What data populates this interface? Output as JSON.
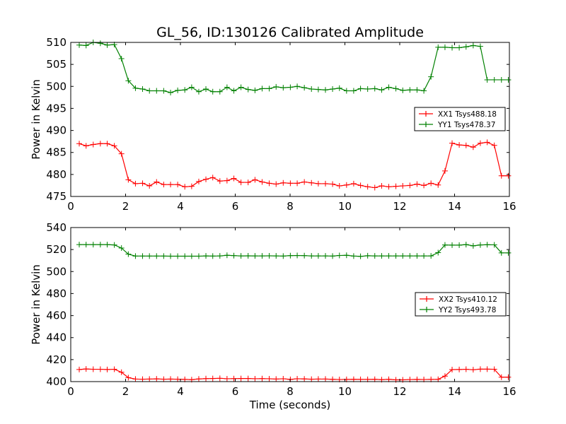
{
  "figure_title": "GL_56, ID:130126 Calibrated Amplitude",
  "colors": {
    "xx": "#ff0000",
    "yy": "#008000",
    "axes": "#000000",
    "background": "#ffffff"
  },
  "chart_data": [
    {
      "type": "line",
      "title": "GL_56, ID:130126 Calibrated Amplitude",
      "xlabel": "",
      "ylabel": "Power in Kelvin",
      "xlim": [
        0,
        16
      ],
      "ylim": [
        475,
        510
      ],
      "x_ticks": [
        0,
        2,
        4,
        6,
        8,
        10,
        12,
        14,
        16
      ],
      "y_ticks": [
        475,
        480,
        485,
        490,
        495,
        500,
        505,
        510
      ],
      "grid": false,
      "legend_position": "right",
      "marker": "plus",
      "x": [
        0.31,
        0.56,
        0.82,
        1.08,
        1.33,
        1.59,
        1.85,
        2.1,
        2.36,
        2.62,
        2.87,
        3.13,
        3.39,
        3.64,
        3.9,
        4.16,
        4.41,
        4.67,
        4.93,
        5.18,
        5.44,
        5.7,
        5.95,
        6.21,
        6.47,
        6.72,
        6.98,
        7.24,
        7.49,
        7.75,
        8.01,
        8.26,
        8.52,
        8.78,
        9.03,
        9.29,
        9.55,
        9.8,
        10.06,
        10.32,
        10.57,
        10.83,
        11.09,
        11.34,
        11.6,
        11.86,
        12.11,
        12.37,
        12.63,
        12.88,
        13.14,
        13.4,
        13.65,
        13.91,
        14.17,
        14.42,
        14.68,
        14.94,
        15.19,
        15.45,
        15.71,
        15.96
      ],
      "series": [
        {
          "name": "XX1 Tsys488.18",
          "color": "#ff0000",
          "values": [
            487.0,
            486.5,
            486.8,
            487.0,
            487.0,
            486.5,
            484.7,
            478.8,
            477.9,
            478.0,
            477.4,
            478.3,
            477.7,
            477.7,
            477.7,
            477.2,
            477.3,
            478.4,
            478.9,
            479.3,
            478.5,
            478.6,
            479.1,
            478.2,
            478.2,
            478.8,
            478.3,
            478.0,
            477.8,
            478.1,
            478.0,
            478.0,
            478.3,
            478.1,
            477.9,
            477.9,
            477.8,
            477.4,
            477.6,
            477.9,
            477.5,
            477.2,
            477.0,
            477.4,
            477.2,
            477.3,
            477.4,
            477.5,
            477.8,
            477.5,
            478.0,
            477.6,
            480.8,
            487.1,
            486.7,
            486.6,
            486.2,
            487.1,
            487.3,
            486.6,
            479.7,
            479.7
          ]
        },
        {
          "name": "YY1 Tsys478.37",
          "color": "#008000",
          "values": [
            509.4,
            509.3,
            510.0,
            509.8,
            509.4,
            509.5,
            506.3,
            501.3,
            499.6,
            499.4,
            499.0,
            499.0,
            499.0,
            498.6,
            499.1,
            499.2,
            499.8,
            498.8,
            499.4,
            498.8,
            498.8,
            499.8,
            499.0,
            499.8,
            499.3,
            499.1,
            499.5,
            499.5,
            499.9,
            499.7,
            499.8,
            500.0,
            499.7,
            499.4,
            499.3,
            499.2,
            499.4,
            499.6,
            499.0,
            499.0,
            499.5,
            499.4,
            499.5,
            499.2,
            499.8,
            499.5,
            499.1,
            499.2,
            499.2,
            499.0,
            502.2,
            508.9,
            508.9,
            508.8,
            508.8,
            509.0,
            509.3,
            509.1,
            501.5,
            501.5,
            501.5,
            501.5
          ]
        }
      ]
    },
    {
      "type": "line",
      "title": "",
      "xlabel": "Time (seconds)",
      "ylabel": "Power in Kelvin",
      "xlim": [
        0,
        16
      ],
      "ylim": [
        400,
        540
      ],
      "x_ticks": [
        0,
        2,
        4,
        6,
        8,
        10,
        12,
        14,
        16
      ],
      "y_ticks": [
        400,
        420,
        440,
        460,
        480,
        500,
        520,
        540
      ],
      "grid": false,
      "legend_position": "right",
      "marker": "plus",
      "x": [
        0.31,
        0.56,
        0.82,
        1.08,
        1.33,
        1.59,
        1.85,
        2.1,
        2.36,
        2.62,
        2.87,
        3.13,
        3.39,
        3.64,
        3.9,
        4.16,
        4.41,
        4.67,
        4.93,
        5.18,
        5.44,
        5.7,
        5.95,
        6.21,
        6.47,
        6.72,
        6.98,
        7.24,
        7.49,
        7.75,
        8.01,
        8.26,
        8.52,
        8.78,
        9.03,
        9.29,
        9.55,
        9.8,
        10.06,
        10.32,
        10.57,
        10.83,
        11.09,
        11.34,
        11.6,
        11.86,
        12.11,
        12.37,
        12.63,
        12.88,
        13.14,
        13.4,
        13.65,
        13.91,
        14.17,
        14.42,
        14.68,
        14.94,
        15.19,
        15.45,
        15.71,
        15.96
      ],
      "series": [
        {
          "name": "XX2 Tsys410.12",
          "color": "#ff0000",
          "values": [
            411.0,
            411.5,
            411.2,
            411.2,
            411.0,
            411.2,
            408.5,
            403.6,
            402.3,
            402.2,
            402.3,
            402.5,
            402.2,
            402.3,
            402.2,
            402.0,
            401.8,
            402.4,
            402.7,
            402.8,
            403.0,
            402.6,
            402.7,
            402.8,
            402.8,
            402.6,
            402.7,
            402.6,
            402.3,
            402.6,
            402.0,
            402.6,
            402.4,
            402.2,
            402.3,
            402.3,
            402.1,
            401.9,
            402.0,
            402.1,
            402.0,
            402.0,
            402.1,
            401.8,
            402.1,
            401.6,
            401.6,
            401.9,
            402.0,
            401.9,
            402.0,
            402.1,
            405.0,
            410.9,
            411.0,
            411.2,
            410.8,
            411.3,
            411.3,
            411.2,
            404.0,
            404.0
          ]
        },
        {
          "name": "YY2 Tsys493.78",
          "color": "#008000",
          "values": [
            524.5,
            524.5,
            524.5,
            524.5,
            524.5,
            524.2,
            521.4,
            515.8,
            514.1,
            514.1,
            514.1,
            514.1,
            514.1,
            514.0,
            514.0,
            514.0,
            514.0,
            514.0,
            514.2,
            514.1,
            514.2,
            514.8,
            514.5,
            514.2,
            514.3,
            514.2,
            514.2,
            514.3,
            514.2,
            514.1,
            514.5,
            514.6,
            514.5,
            514.2,
            514.2,
            514.2,
            514.1,
            514.6,
            514.8,
            514.1,
            513.8,
            514.4,
            514.2,
            514.2,
            514.2,
            514.2,
            514.2,
            514.2,
            514.2,
            514.2,
            514.2,
            517.2,
            524.2,
            524.0,
            524.0,
            524.5,
            523.4,
            524.2,
            524.4,
            524.3,
            517.0,
            517.0
          ]
        }
      ]
    }
  ]
}
